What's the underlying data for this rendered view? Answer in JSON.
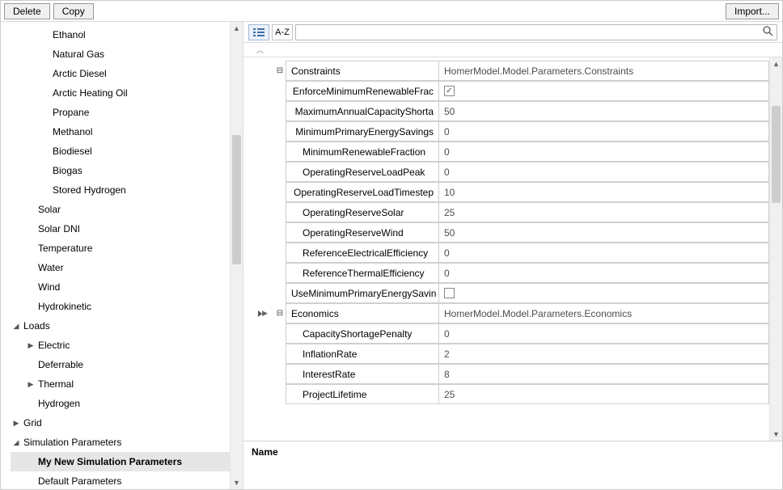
{
  "toolbar": {
    "delete": "Delete",
    "copy": "Copy",
    "import": "Import..."
  },
  "tree": {
    "fuels": [
      "Ethanol",
      "Natural Gas",
      "Arctic Diesel",
      "Arctic Heating Oil",
      "Propane",
      "Methanol",
      "Biodiesel",
      "Biogas",
      "Stored Hydrogen"
    ],
    "resources": [
      "Solar",
      "Solar DNI",
      "Temperature",
      "Water",
      "Wind",
      "Hydrokinetic"
    ],
    "loads_label": "Loads",
    "loads": [
      "Electric",
      "Deferrable",
      "Thermal",
      "Hydrogen"
    ],
    "loads_expand": {
      "Electric": true,
      "Thermal": true
    },
    "grid_label": "Grid",
    "sim_label": "Simulation Parameters",
    "sim_items": [
      "My New Simulation Parameters",
      "Default Parameters"
    ],
    "sim_selected": "My New Simulation Parameters"
  },
  "prop_toolbar": {
    "az": "A-Z",
    "search_placeholder": ""
  },
  "groups": [
    {
      "name": "Constraints",
      "value": "HomerModel.Model.Parameters.Constraints",
      "selected": false,
      "rows": [
        {
          "name": "EnforceMinimumRenewableFraction",
          "display": "EnforceMinimumRenewableFrac",
          "type": "check",
          "value": true
        },
        {
          "name": "MaximumAnnualCapacityShortage",
          "display": "MaximumAnnualCapacityShorta",
          "type": "text",
          "value": "50"
        },
        {
          "name": "MinimumPrimaryEnergySavings",
          "display": "MinimumPrimaryEnergySavings",
          "type": "text",
          "value": "0"
        },
        {
          "name": "MinimumRenewableFraction",
          "display": "MinimumRenewableFraction",
          "type": "text",
          "value": "0"
        },
        {
          "name": "OperatingReserveLoadPeak",
          "display": "OperatingReserveLoadPeak",
          "type": "text",
          "value": "0"
        },
        {
          "name": "OperatingReserveLoadTimestep",
          "display": "OperatingReserveLoadTimestep",
          "type": "text",
          "value": "10"
        },
        {
          "name": "OperatingReserveSolar",
          "display": "OperatingReserveSolar",
          "type": "text",
          "value": "25"
        },
        {
          "name": "OperatingReserveWind",
          "display": "OperatingReserveWind",
          "type": "text",
          "value": "50"
        },
        {
          "name": "ReferenceElectricalEfficiency",
          "display": "ReferenceElectricalEfficiency",
          "type": "text",
          "value": "0"
        },
        {
          "name": "ReferenceThermalEfficiency",
          "display": "ReferenceThermalEfficiency",
          "type": "text",
          "value": "0"
        },
        {
          "name": "UseMinimumPrimaryEnergySavings",
          "display": "UseMinimumPrimaryEnergySavin",
          "type": "check",
          "value": false
        }
      ]
    },
    {
      "name": "Economics",
      "value": "HomerModel.Model.Parameters.Economics",
      "selected": true,
      "rows": [
        {
          "name": "CapacityShortagePenalty",
          "display": "CapacityShortagePenalty",
          "type": "text",
          "value": "0"
        },
        {
          "name": "InflationRate",
          "display": "InflationRate",
          "type": "text",
          "value": "2"
        },
        {
          "name": "InterestRate",
          "display": "InterestRate",
          "type": "text",
          "value": "8"
        },
        {
          "name": "ProjectLifetime",
          "display": "ProjectLifetime",
          "type": "text",
          "value": "25"
        }
      ]
    }
  ],
  "description": {
    "title": "Name"
  },
  "colors": {
    "border": "#d0d0d0",
    "selected_bg": "#e6e6e6",
    "toolbar_btn_bg": "#f0f0f0"
  }
}
